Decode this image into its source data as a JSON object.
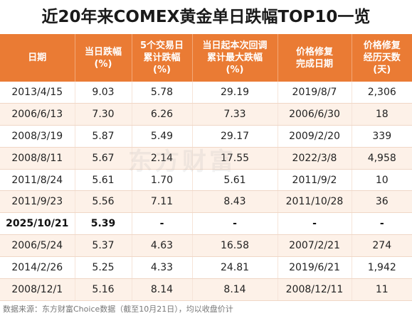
{
  "title": "近20年来COMEX黄金单日跌幅TOP10一览",
  "table": {
    "headers": [
      [
        "日期"
      ],
      [
        "当日跌幅",
        "(%)"
      ],
      [
        "5个交易日",
        "累计跌幅",
        "(%)"
      ],
      [
        "当日起本次回调",
        "累计最大跌幅",
        "(%)"
      ],
      [
        "价格修复",
        "完成日期"
      ],
      [
        "价格修复",
        "经历天数",
        "(天)"
      ]
    ],
    "rows": [
      [
        "2013/4/15",
        "9.03",
        "5.78",
        "29.19",
        "2019/8/7",
        "2,306"
      ],
      [
        "2006/6/13",
        "7.30",
        "6.26",
        "7.33",
        "2006/6/30",
        "18"
      ],
      [
        "2008/3/19",
        "5.87",
        "5.49",
        "29.17",
        "2009/2/20",
        "339"
      ],
      [
        "2008/8/11",
        "5.67",
        "2.14",
        "17.55",
        "2022/3/8",
        "4,958"
      ],
      [
        "2011/8/24",
        "5.61",
        "1.70",
        "5.61",
        "2011/9/2",
        "10"
      ],
      [
        "2011/9/23",
        "5.56",
        "7.11",
        "8.43",
        "2011/10/28",
        "36"
      ],
      [
        "2025/10/21",
        "5.39",
        "-",
        "-",
        "-",
        "-"
      ],
      [
        "2006/5/24",
        "5.37",
        "4.63",
        "16.58",
        "2007/2/21",
        "274"
      ],
      [
        "2014/2/26",
        "5.25",
        "4.33",
        "24.81",
        "2019/6/21",
        "1,942"
      ],
      [
        "2008/12/1",
        "5.16",
        "8.14",
        "8.14",
        "2008/12/11",
        "11"
      ]
    ],
    "highlight_row": 6
  },
  "watermark": "东方财富",
  "source": "数据来源：东方财富Choice数据（截至10月21日），均以收盘价计",
  "colors": {
    "header_bg": "#ea7b34",
    "alt_row_bg": "#fdf1e8"
  }
}
